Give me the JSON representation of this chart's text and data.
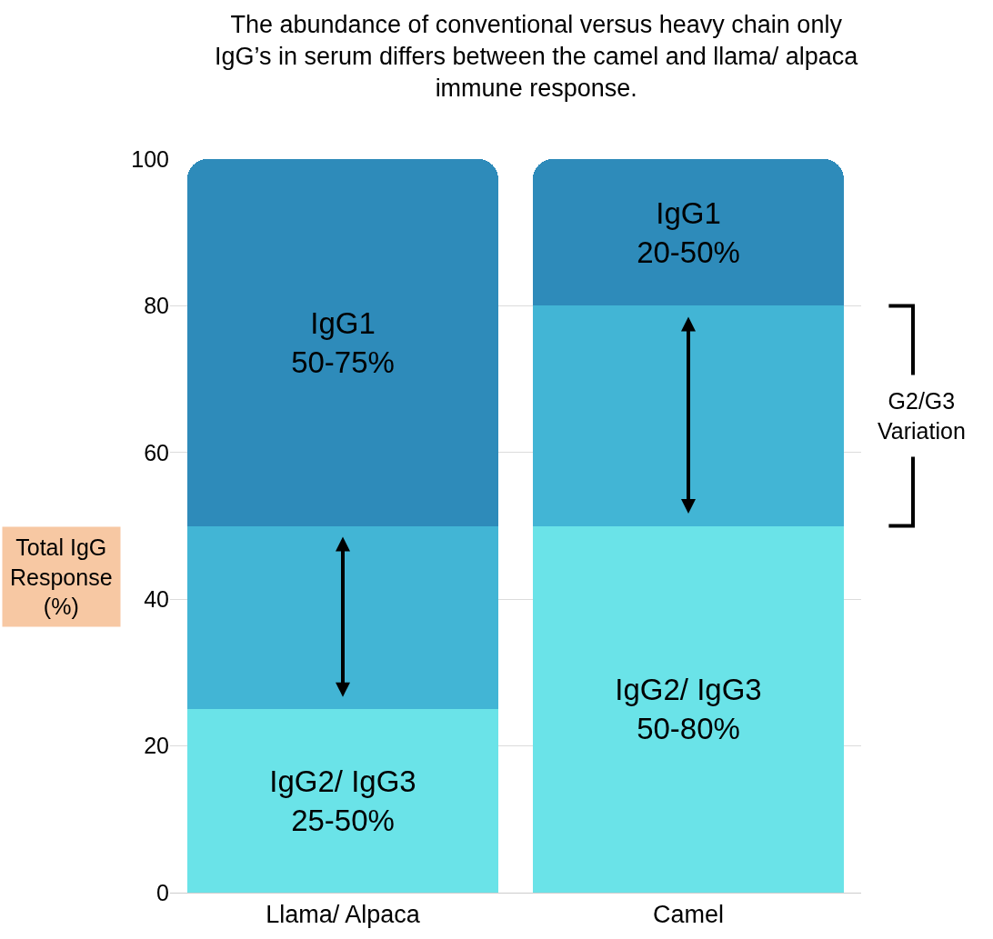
{
  "chart_data": {
    "type": "bar",
    "title": "The abundance of conventional versus heavy chain only\nIgG’s in serum differs between the camel and llama/ alpaca\nimmune response.",
    "ylabel": "Total IgG\nResponse\n(%)",
    "categories": [
      "Llama/ Alpaca",
      "Camel"
    ],
    "stacked": true,
    "series": [
      {
        "color": "#6ae3e8",
        "values": [
          25,
          50
        ],
        "value_labels": [
          "IgG2/ IgG3\n25-50%",
          "IgG2/ IgG3\n50-80%"
        ]
      },
      {
        "color": "#42b5d5",
        "values": [
          25,
          30
        ],
        "value_labels": [
          null,
          null
        ]
      },
      {
        "color": "#2e8bba",
        "values": [
          50,
          20
        ],
        "value_labels": [
          "IgG1\n50-75%",
          "IgG1\n20-50%"
        ]
      }
    ],
    "ylim": [
      0,
      100
    ],
    "yticks": [
      0,
      20,
      40,
      60,
      80,
      100
    ],
    "grid": "y",
    "annotations": [
      "G2/G3\nVariation"
    ]
  }
}
